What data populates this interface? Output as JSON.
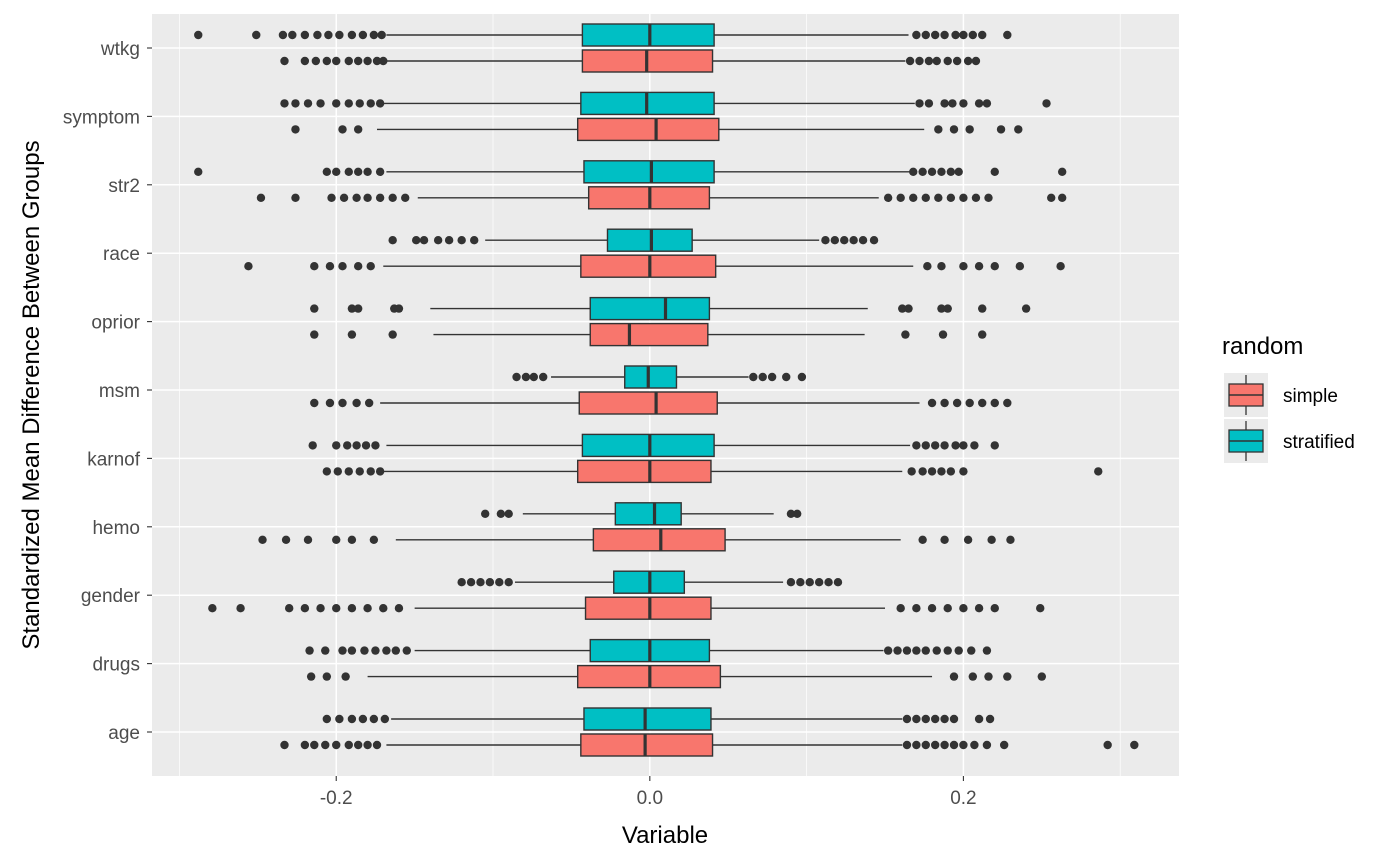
{
  "chart_data": {
    "type": "boxplot",
    "orientation": "horizontal",
    "xlabel": "Variable",
    "ylabel": "Standardized Mean Difference Between Groups",
    "xlim": [
      -0.3175,
      0.3375
    ],
    "x_ticks": [
      -0.2,
      0.0,
      0.2
    ],
    "x_tick_labels": [
      "-0.2",
      "0.0",
      "0.2"
    ],
    "grid": true,
    "legend": {
      "title": "random",
      "position": "right",
      "entries": [
        {
          "name": "simple",
          "color": "#F8766D"
        },
        {
          "name": "stratified",
          "color": "#00BFC4"
        }
      ]
    },
    "categories": [
      "wtkg",
      "symptom",
      "str2",
      "race",
      "oprior",
      "msm",
      "karnof",
      "hemo",
      "gender",
      "drugs",
      "age"
    ],
    "series": [
      {
        "name": "stratified",
        "color": "#00BFC4",
        "boxes": [
          {
            "category": "wtkg",
            "min": -0.168,
            "q1": -0.043,
            "median": 0.0,
            "q3": 0.041,
            "max": 0.165,
            "outliers": [
              -0.288,
              -0.251,
              -0.234,
              -0.228,
              -0.22,
              -0.212,
              -0.205,
              -0.198,
              -0.19,
              -0.183,
              -0.176,
              -0.171,
              0.17,
              0.176,
              0.182,
              0.188,
              0.195,
              0.2,
              0.206,
              0.212,
              0.228
            ]
          },
          {
            "category": "symptom",
            "min": -0.17,
            "q1": -0.044,
            "median": -0.002,
            "q3": 0.041,
            "max": 0.169,
            "outliers": [
              -0.233,
              -0.226,
              -0.218,
              -0.21,
              -0.2,
              -0.192,
              -0.185,
              -0.178,
              -0.172,
              0.172,
              0.178,
              0.188,
              0.193,
              0.2,
              0.21,
              0.215,
              0.253
            ]
          },
          {
            "category": "str2",
            "min": -0.168,
            "q1": -0.042,
            "median": 0.001,
            "q3": 0.041,
            "max": 0.166,
            "outliers": [
              -0.288,
              -0.206,
              -0.2,
              -0.192,
              -0.186,
              -0.18,
              -0.172,
              0.168,
              0.174,
              0.18,
              0.186,
              0.192,
              0.197,
              0.22,
              0.263
            ]
          },
          {
            "category": "race",
            "min": -0.105,
            "q1": -0.027,
            "median": 0.001,
            "q3": 0.027,
            "max": 0.108,
            "outliers": [
              -0.164,
              -0.149,
              -0.144,
              -0.135,
              -0.128,
              -0.12,
              -0.112,
              0.112,
              0.118,
              0.124,
              0.13,
              0.136,
              0.143
            ]
          },
          {
            "category": "oprior",
            "min": -0.14,
            "q1": -0.038,
            "median": 0.01,
            "q3": 0.038,
            "max": 0.139,
            "outliers": [
              -0.214,
              -0.19,
              -0.186,
              -0.163,
              -0.16,
              0.161,
              0.165,
              0.186,
              0.19,
              0.212,
              0.24
            ]
          },
          {
            "category": "msm",
            "min": -0.063,
            "q1": -0.016,
            "median": -0.001,
            "q3": 0.017,
            "max": 0.063,
            "outliers": [
              -0.085,
              -0.079,
              -0.074,
              -0.068,
              0.066,
              0.072,
              0.078,
              0.087,
              0.097
            ]
          },
          {
            "category": "karnof",
            "min": -0.168,
            "q1": -0.043,
            "median": 0.0,
            "q3": 0.041,
            "max": 0.166,
            "outliers": [
              -0.215,
              -0.2,
              -0.193,
              -0.187,
              -0.181,
              -0.175,
              0.17,
              0.176,
              0.182,
              0.188,
              0.195,
              0.2,
              0.207,
              0.22
            ]
          },
          {
            "category": "hemo",
            "min": -0.081,
            "q1": -0.022,
            "median": 0.003,
            "q3": 0.02,
            "max": 0.079,
            "outliers": [
              -0.105,
              -0.095,
              -0.09,
              0.09,
              0.094
            ]
          },
          {
            "category": "gender",
            "min": -0.086,
            "q1": -0.023,
            "median": 0.0,
            "q3": 0.022,
            "max": 0.085,
            "outliers": [
              -0.12,
              -0.114,
              -0.108,
              -0.102,
              -0.096,
              -0.09,
              0.09,
              0.096,
              0.102,
              0.108,
              0.114,
              0.12
            ]
          },
          {
            "category": "drugs",
            "min": -0.15,
            "q1": -0.038,
            "median": 0.0,
            "q3": 0.038,
            "max": 0.149,
            "outliers": [
              -0.217,
              -0.207,
              -0.196,
              -0.19,
              -0.182,
              -0.175,
              -0.168,
              -0.162,
              -0.155,
              0.152,
              0.158,
              0.164,
              0.17,
              0.176,
              0.183,
              0.19,
              0.197,
              0.205,
              0.215
            ]
          },
          {
            "category": "age",
            "min": -0.165,
            "q1": -0.042,
            "median": -0.003,
            "q3": 0.039,
            "max": 0.161,
            "outliers": [
              -0.206,
              -0.198,
              -0.19,
              -0.183,
              -0.176,
              -0.169,
              0.164,
              0.17,
              0.176,
              0.182,
              0.188,
              0.194,
              0.21,
              0.217
            ]
          }
        ]
      },
      {
        "name": "simple",
        "color": "#F8766D",
        "boxes": [
          {
            "category": "wtkg",
            "min": -0.168,
            "q1": -0.043,
            "median": -0.002,
            "q3": 0.04,
            "max": 0.163,
            "outliers": [
              -0.233,
              -0.22,
              -0.213,
              -0.206,
              -0.2,
              -0.192,
              -0.186,
              -0.18,
              -0.174,
              -0.17,
              0.166,
              0.172,
              0.178,
              0.183,
              0.19,
              0.196,
              0.203,
              0.208
            ]
          },
          {
            "category": "symptom",
            "min": -0.174,
            "q1": -0.046,
            "median": 0.004,
            "q3": 0.044,
            "max": 0.175,
            "outliers": [
              -0.226,
              -0.196,
              -0.186,
              0.184,
              0.194,
              0.204,
              0.224,
              0.235
            ]
          },
          {
            "category": "str2",
            "min": -0.148,
            "q1": -0.039,
            "median": 0.0,
            "q3": 0.038,
            "max": 0.146,
            "outliers": [
              -0.248,
              -0.226,
              -0.203,
              -0.195,
              -0.187,
              -0.18,
              -0.172,
              -0.164,
              -0.156,
              0.152,
              0.16,
              0.168,
              0.176,
              0.184,
              0.192,
              0.2,
              0.208,
              0.216,
              0.256,
              0.263
            ]
          },
          {
            "category": "race",
            "min": -0.17,
            "q1": -0.044,
            "median": 0.0,
            "q3": 0.042,
            "max": 0.168,
            "outliers": [
              -0.256,
              -0.214,
              -0.204,
              -0.196,
              -0.186,
              -0.178,
              0.177,
              0.186,
              0.2,
              0.21,
              0.22,
              0.236,
              0.262
            ]
          },
          {
            "category": "oprior",
            "min": -0.138,
            "q1": -0.038,
            "median": -0.013,
            "q3": 0.037,
            "max": 0.137,
            "outliers": [
              -0.214,
              -0.19,
              -0.164,
              0.163,
              0.187,
              0.212
            ]
          },
          {
            "category": "msm",
            "min": -0.172,
            "q1": -0.045,
            "median": 0.004,
            "q3": 0.043,
            "max": 0.172,
            "outliers": [
              -0.214,
              -0.204,
              -0.196,
              -0.187,
              -0.179,
              0.18,
              0.188,
              0.196,
              0.204,
              0.212,
              0.22,
              0.228
            ]
          },
          {
            "category": "karnof",
            "min": -0.17,
            "q1": -0.046,
            "median": 0.0,
            "q3": 0.039,
            "max": 0.161,
            "outliers": [
              -0.206,
              -0.199,
              -0.192,
              -0.185,
              -0.178,
              -0.172,
              0.167,
              0.174,
              0.18,
              0.186,
              0.192,
              0.2,
              0.286
            ]
          },
          {
            "category": "hemo",
            "min": -0.162,
            "q1": -0.036,
            "median": 0.007,
            "q3": 0.048,
            "max": 0.16,
            "outliers": [
              -0.247,
              -0.232,
              -0.218,
              -0.2,
              -0.19,
              -0.176,
              0.174,
              0.188,
              0.203,
              0.218,
              0.23
            ]
          },
          {
            "category": "gender",
            "min": -0.15,
            "q1": -0.041,
            "median": 0.0,
            "q3": 0.039,
            "max": 0.15,
            "outliers": [
              -0.279,
              -0.261,
              -0.23,
              -0.22,
              -0.21,
              -0.2,
              -0.19,
              -0.18,
              -0.17,
              -0.16,
              0.16,
              0.17,
              0.18,
              0.19,
              0.2,
              0.21,
              0.22,
              0.249
            ]
          },
          {
            "category": "drugs",
            "min": -0.18,
            "q1": -0.046,
            "median": 0.0,
            "q3": 0.045,
            "max": 0.18,
            "outliers": [
              -0.216,
              -0.206,
              -0.194,
              0.194,
              0.206,
              0.216,
              0.228,
              0.25
            ]
          },
          {
            "category": "age",
            "min": -0.168,
            "q1": -0.044,
            "median": -0.003,
            "q3": 0.04,
            "max": 0.161,
            "outliers": [
              -0.233,
              -0.22,
              -0.214,
              -0.207,
              -0.2,
              -0.192,
              -0.186,
              -0.18,
              -0.174,
              0.164,
              0.17,
              0.176,
              0.182,
              0.188,
              0.194,
              0.2,
              0.207,
              0.215,
              0.226,
              0.292,
              0.309
            ]
          }
        ]
      }
    ]
  }
}
